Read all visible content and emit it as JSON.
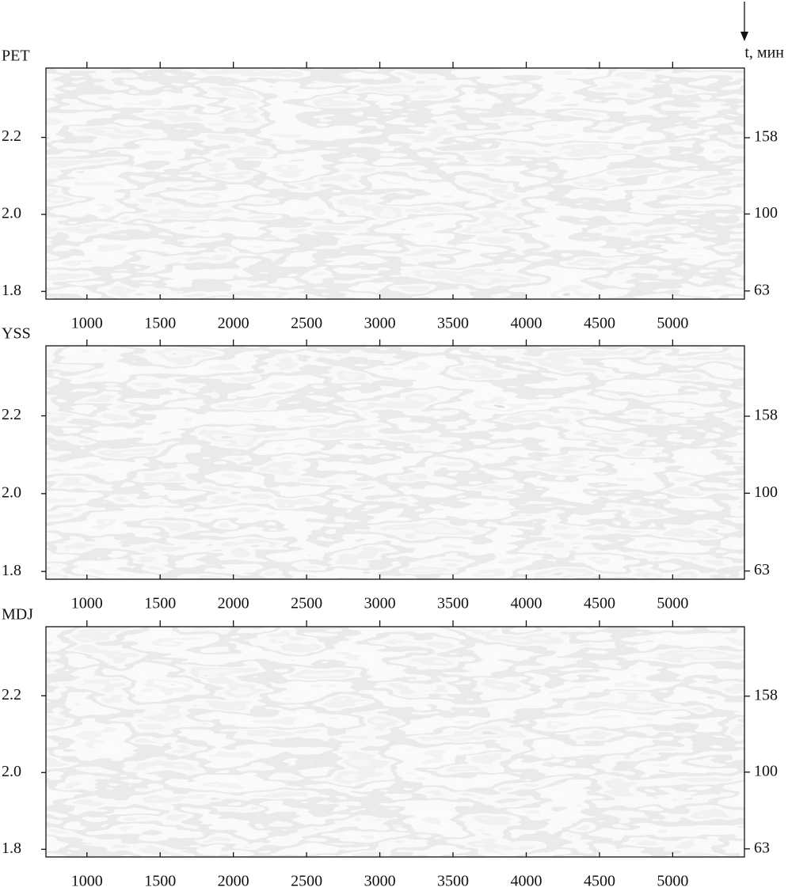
{
  "chart_data": [
    {
      "type": "heatmap",
      "title": "PET",
      "y2label": "t, мин",
      "xlim": [
        720,
        5490
      ],
      "xticks": [
        1000,
        1500,
        2000,
        2500,
        3000,
        3500,
        4000,
        4500,
        5000
      ],
      "ylim": [
        1.78,
        2.38
      ],
      "yticks": [
        {
          "value": 1.8,
          "label": "1.8"
        },
        {
          "value": 2.0,
          "label": "2.0"
        },
        {
          "value": 2.2,
          "label": "2.2"
        }
      ],
      "y2lim": [
        60,
        240
      ],
      "y2log": true,
      "y2ticks": [
        63,
        100,
        158
      ]
    },
    {
      "type": "heatmap",
      "title": "YSS",
      "xlim": [
        720,
        5490
      ],
      "xticks": [
        1000,
        1500,
        2000,
        2500,
        3000,
        3500,
        4000,
        4500,
        5000
      ],
      "ylim": [
        1.78,
        2.38
      ],
      "yticks": [
        {
          "value": 1.8,
          "label": "1.8"
        },
        {
          "value": 2.0,
          "label": "2.0"
        },
        {
          "value": 2.2,
          "label": "2.2"
        }
      ],
      "y2lim": [
        60,
        240
      ],
      "y2log": true,
      "y2ticks": [
        63,
        100,
        158
      ]
    },
    {
      "type": "heatmap",
      "title": "MDJ",
      "xlim": [
        720,
        5490
      ],
      "xticks": [
        1000,
        1500,
        2000,
        2500,
        3000,
        3500,
        4000,
        4500,
        5000
      ],
      "ylim": [
        1.78,
        2.38
      ],
      "yticks": [
        {
          "value": 1.8,
          "label": "1.8"
        },
        {
          "value": 2.0,
          "label": "2.0"
        },
        {
          "value": 2.2,
          "label": "2.2"
        }
      ],
      "y2lim": [
        60,
        240
      ],
      "y2log": true,
      "y2ticks": [
        63,
        100,
        158
      ]
    }
  ]
}
